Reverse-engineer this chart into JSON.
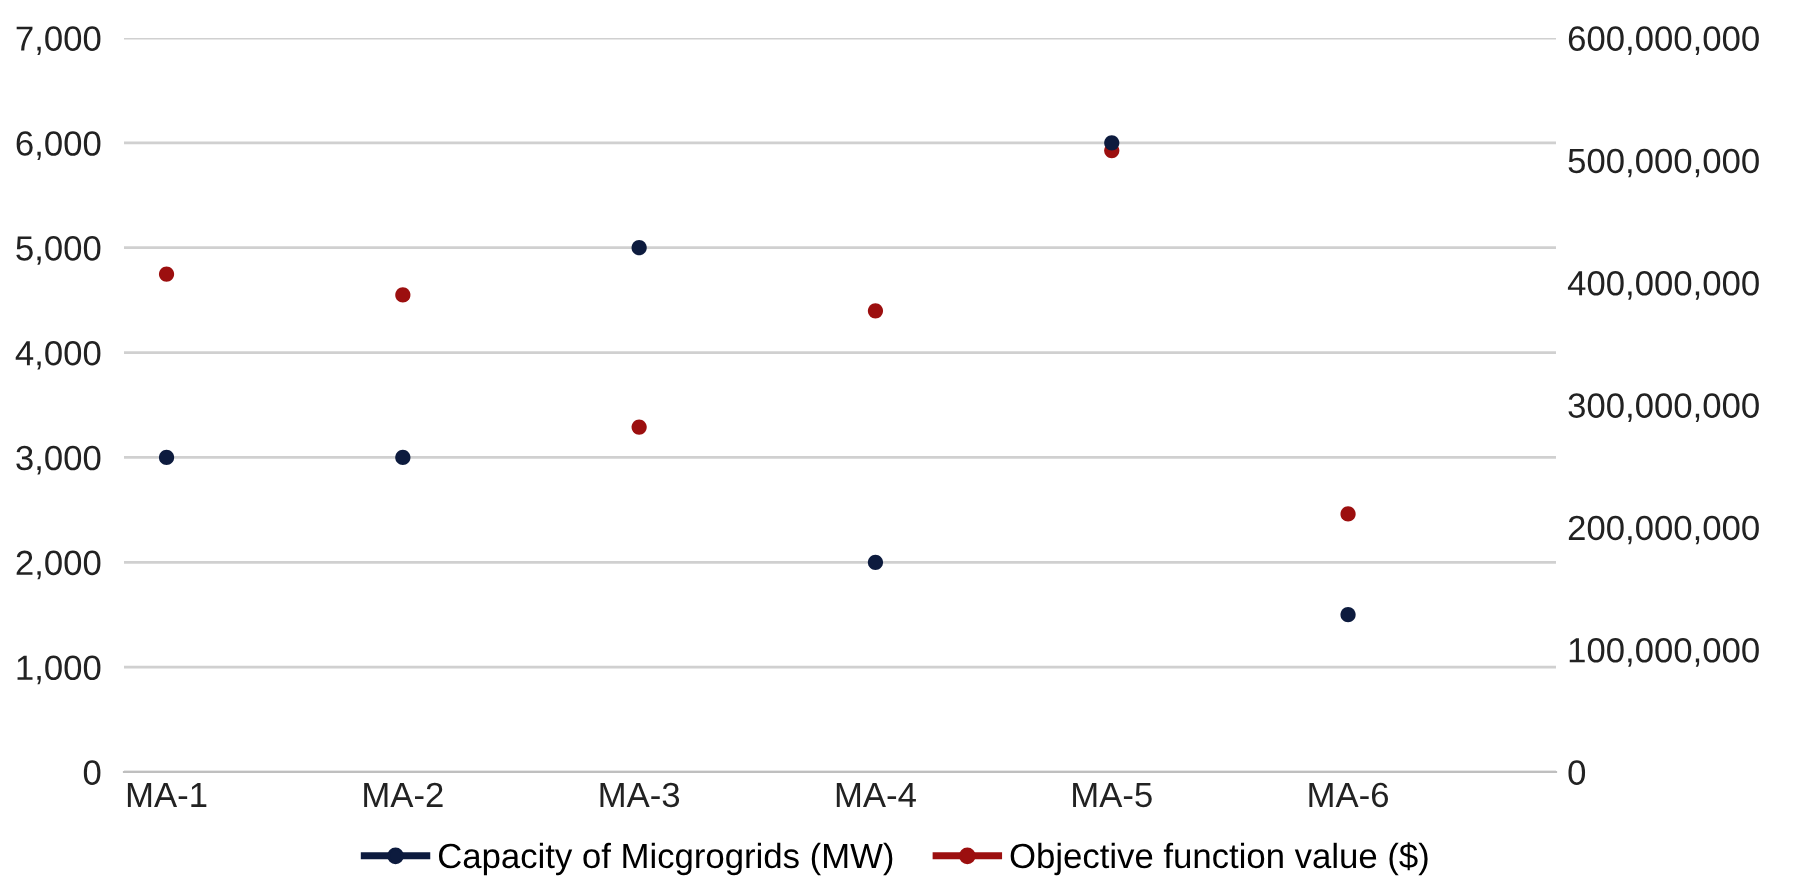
{
  "chart_data": {
    "type": "scatter",
    "categories": [
      "MA-1",
      "MA-2",
      "MA-3",
      "MA-4",
      "MA-5",
      "MA-6"
    ],
    "series": [
      {
        "name": "Capacity of Micgrogrids (MW)",
        "color": "#0d1b3e",
        "values": [
          3000,
          3000,
          5000,
          2000,
          6000,
          1500
        ]
      },
      {
        "name": "Objective function value ($)",
        "color": "#9c0f0f",
        "axis": "y2",
        "values": [
          407000000,
          390000000,
          282000000,
          377000000,
          508000000,
          211000000
        ]
      }
    ],
    "ylim": [
      0,
      7000
    ],
    "yticks": [
      {
        "value": 0,
        "label": "0"
      },
      {
        "value": 1000,
        "label": "1,000"
      },
      {
        "value": 2000,
        "label": "2,000"
      },
      {
        "value": 3000,
        "label": "3,000"
      },
      {
        "value": 4000,
        "label": "4,000"
      },
      {
        "value": 5000,
        "label": "5,000"
      },
      {
        "value": 6000,
        "label": "6,000"
      },
      {
        "value": 7000,
        "label": "7,000"
      }
    ],
    "y2lim": [
      0,
      600000000
    ],
    "y2ticks": [
      {
        "value": 0,
        "label": "0"
      },
      {
        "value": 100000000,
        "label": "100,000,000"
      },
      {
        "value": 200000000,
        "label": "200,000,000"
      },
      {
        "value": 300000000,
        "label": "300,000,000"
      },
      {
        "value": 400000000,
        "label": "400,000,000"
      },
      {
        "value": 500000000,
        "label": "500,000,000"
      },
      {
        "value": 600000000,
        "label": "600,000,000"
      }
    ],
    "grid": "y",
    "legend": "bottom",
    "marker": "circle"
  }
}
